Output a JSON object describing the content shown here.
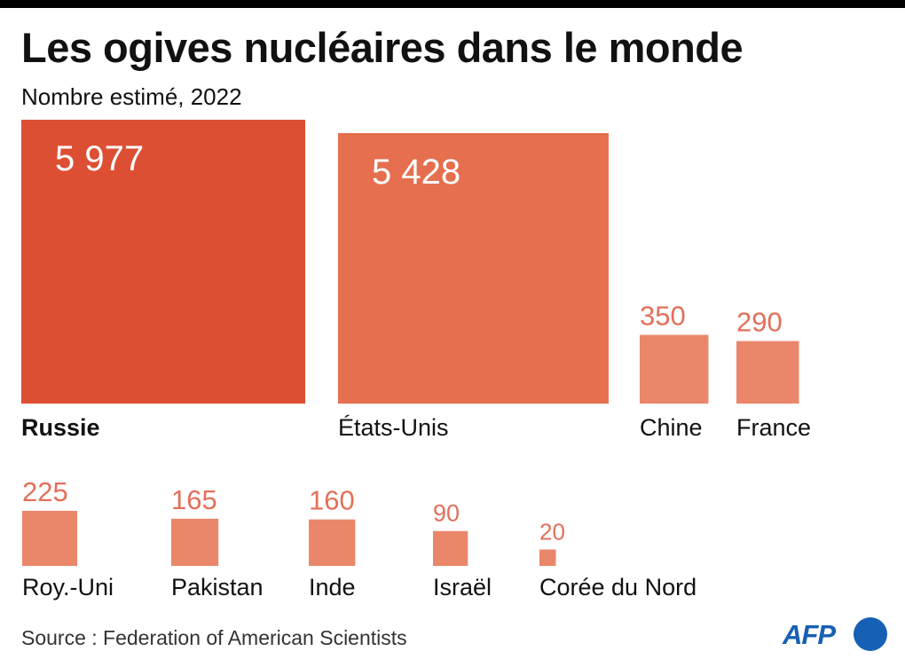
{
  "title": "Les ogives nucléaires dans le monde",
  "subtitle": "Nombre estimé, 2022",
  "source": "Source : Federation of American Scientists",
  "logo_text": "AFP",
  "chart_data": {
    "type": "bar",
    "title": "Les ogives nucléaires dans le monde",
    "subtitle": "Nombre estimé, 2022",
    "encoding": "square area proportional to value",
    "categories": [
      "Russie",
      "États-Unis",
      "Chine",
      "France",
      "Roy.-Uni",
      "Pakistan",
      "Inde",
      "Israël",
      "Corée du Nord"
    ],
    "values": [
      5977,
      5428,
      350,
      290,
      225,
      165,
      160,
      90,
      20
    ],
    "value_labels": [
      "5 977",
      "5 428",
      "350",
      "290",
      "225",
      "165",
      "160",
      "90",
      "20"
    ],
    "highlight": "Russie",
    "colors": {
      "highlight": "#dd4f33",
      "large": "#e56f4e",
      "small": "#ea876a",
      "label_on_light": "#e2705a",
      "label_on_dark": "#ffffff",
      "text": "#111111"
    }
  }
}
